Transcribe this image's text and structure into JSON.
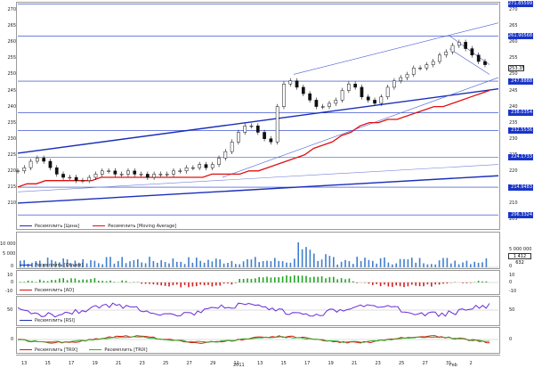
{
  "main_chart": {
    "y_ticks_left": [
      "270",
      "265",
      "260",
      "255",
      "250",
      "245",
      "240",
      "235",
      "230",
      "225",
      "220",
      "215",
      "210"
    ],
    "y_ticks_right": [
      "270",
      "265",
      "260",
      "255",
      "250",
      "245",
      "240",
      "235",
      "230",
      "225",
      "220",
      "215",
      "210",
      "205"
    ],
    "level_markers": [
      {
        "label": "271.85599",
        "dark": false
      },
      {
        "label": "261.90568",
        "dark": false
      },
      {
        "label": "247.8888",
        "dark": false
      },
      {
        "label": "238.0354",
        "dark": false
      },
      {
        "label": "232.5536",
        "dark": false
      },
      {
        "label": "224.1733",
        "dark": false
      },
      {
        "label": "214.9483",
        "dark": false
      },
      {
        "label": "206.3324",
        "dark": false
      }
    ],
    "current_price": "253.35",
    "legend": [
      {
        "text": "Ресемплить [Цена]",
        "color": "#1b2fb0"
      },
      {
        "text": "Ресемплить [Moving Average]",
        "color": "#e01010"
      }
    ]
  },
  "volume_panel": {
    "left_ticks": [
      "10 000",
      "5 000",
      "0"
    ],
    "right_ticks": [
      "5 000 000",
      "0"
    ],
    "value_box": "1 412 632",
    "legend": [
      {
        "text": "Ресемплить [Объем]",
        "color": "#1b2fb0"
      }
    ]
  },
  "ad_panel": {
    "left_ticks": [
      "10",
      "0",
      "-10"
    ],
    "right_ticks": [
      "10",
      "0",
      "-10"
    ],
    "legend": [
      {
        "text": "Ресемплить [AD]",
        "color": "#e01010"
      }
    ]
  },
  "rsi_panel": {
    "left_ticks": [
      "50"
    ],
    "right_ticks": [
      "50"
    ],
    "legend": [
      {
        "text": "Ресемплить [RSI]",
        "color": "#1b2fb0"
      }
    ]
  },
  "trix_panel": {
    "left_ticks": [
      "0"
    ],
    "right_ticks": [
      "0"
    ],
    "legend": [
      {
        "text": "Ресемплить [TRIX]",
        "color": "#e01010"
      },
      {
        "text": "Ресемплить [TRIX]",
        "color": "#2bb02b"
      }
    ]
  },
  "x_axis": {
    "dates": [
      "13",
      "15",
      "17",
      "19",
      "21",
      "23",
      "25",
      "27",
      "29",
      "11",
      "13",
      "15",
      "17",
      "19",
      "21",
      "23",
      "25",
      "27",
      "31",
      "2"
    ],
    "month_labels": [
      "2011",
      "Feb"
    ]
  },
  "chart_data": {
    "type": "line",
    "title": "",
    "ylim": [
      205,
      272
    ],
    "ohlc_note": "candlestick price series",
    "price_close": [
      220,
      221,
      223,
      224,
      223,
      221,
      219,
      218,
      218,
      217,
      217,
      218,
      219,
      220,
      220,
      219,
      219,
      220,
      219,
      219,
      218,
      219,
      219,
      219,
      220,
      220,
      221,
      221,
      222,
      221,
      222,
      224,
      226,
      229,
      232,
      234,
      234,
      232,
      230,
      229,
      240,
      247,
      248,
      246,
      244,
      242,
      240,
      240,
      241,
      242,
      245,
      247,
      246,
      243,
      242,
      241,
      243,
      246,
      248,
      249,
      250,
      252,
      252,
      253,
      254,
      256,
      257,
      259,
      260,
      258,
      256,
      254,
      253
    ],
    "moving_average": [
      215,
      216,
      216,
      217,
      217,
      217,
      217,
      217,
      217,
      218,
      218,
      218,
      218,
      218,
      218,
      218,
      218,
      218,
      218,
      218,
      218,
      219,
      219,
      219,
      219,
      220,
      220,
      221,
      222,
      223,
      224,
      225,
      227,
      228,
      229,
      231,
      232,
      234,
      235,
      235,
      236,
      236,
      237,
      238,
      239,
      240,
      240,
      241,
      242,
      243,
      244,
      245
    ],
    "levels": [
      271.85599,
      261.90568,
      247.8888,
      238.0354,
      232.5536,
      224.1733,
      214.9483,
      206.3324
    ],
    "series": [
      {
        "name": "Ресемплить [Цена]",
        "values": []
      },
      {
        "name": "Ресемплить [Moving Average]",
        "values": []
      }
    ]
  }
}
